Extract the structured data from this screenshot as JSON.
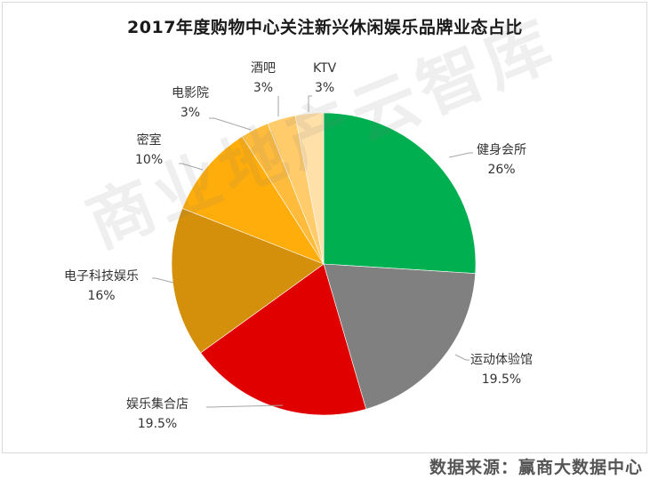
{
  "title": "2017年度购物中心关注新兴休闲娱乐品牌业态占比",
  "source": "数据来源：赢商大数据中心",
  "watermark": "商业地产云智库",
  "chart_data": {
    "type": "pie",
    "title": "2017年度购物中心关注新兴休闲娱乐品牌业态占比",
    "start_angle_deg": 0,
    "direction": "clockwise",
    "categories": [
      "健身会所",
      "运动体验馆",
      "娱乐集合店",
      "电子科技娱乐",
      "密室",
      "电影院",
      "酒吧",
      "KTV"
    ],
    "values": [
      26,
      19.5,
      19.5,
      16,
      10,
      3,
      3,
      3
    ],
    "labels": [
      "26%",
      "19.5%",
      "19.5%",
      "16%",
      "10%",
      "3%",
      "3%",
      "3%"
    ],
    "colors": [
      "#00b050",
      "#808080",
      "#e00000",
      "#d4900a",
      "#ffad0a",
      "#ffbc3c",
      "#ffcb6b",
      "#ffe0a8"
    ],
    "legend": "none (data labels with leader lines)"
  },
  "labels": [
    {
      "name": "健身会所",
      "pct": "26%"
    },
    {
      "name": "运动体验馆",
      "pct": "19.5%"
    },
    {
      "name": "娱乐集合店",
      "pct": "19.5%"
    },
    {
      "name": "电子科技娱乐",
      "pct": "16%"
    },
    {
      "name": "密室",
      "pct": "10%"
    },
    {
      "name": "电影院",
      "pct": "3%"
    },
    {
      "name": "酒吧",
      "pct": "3%"
    },
    {
      "name": "KTV",
      "pct": "3%"
    }
  ]
}
